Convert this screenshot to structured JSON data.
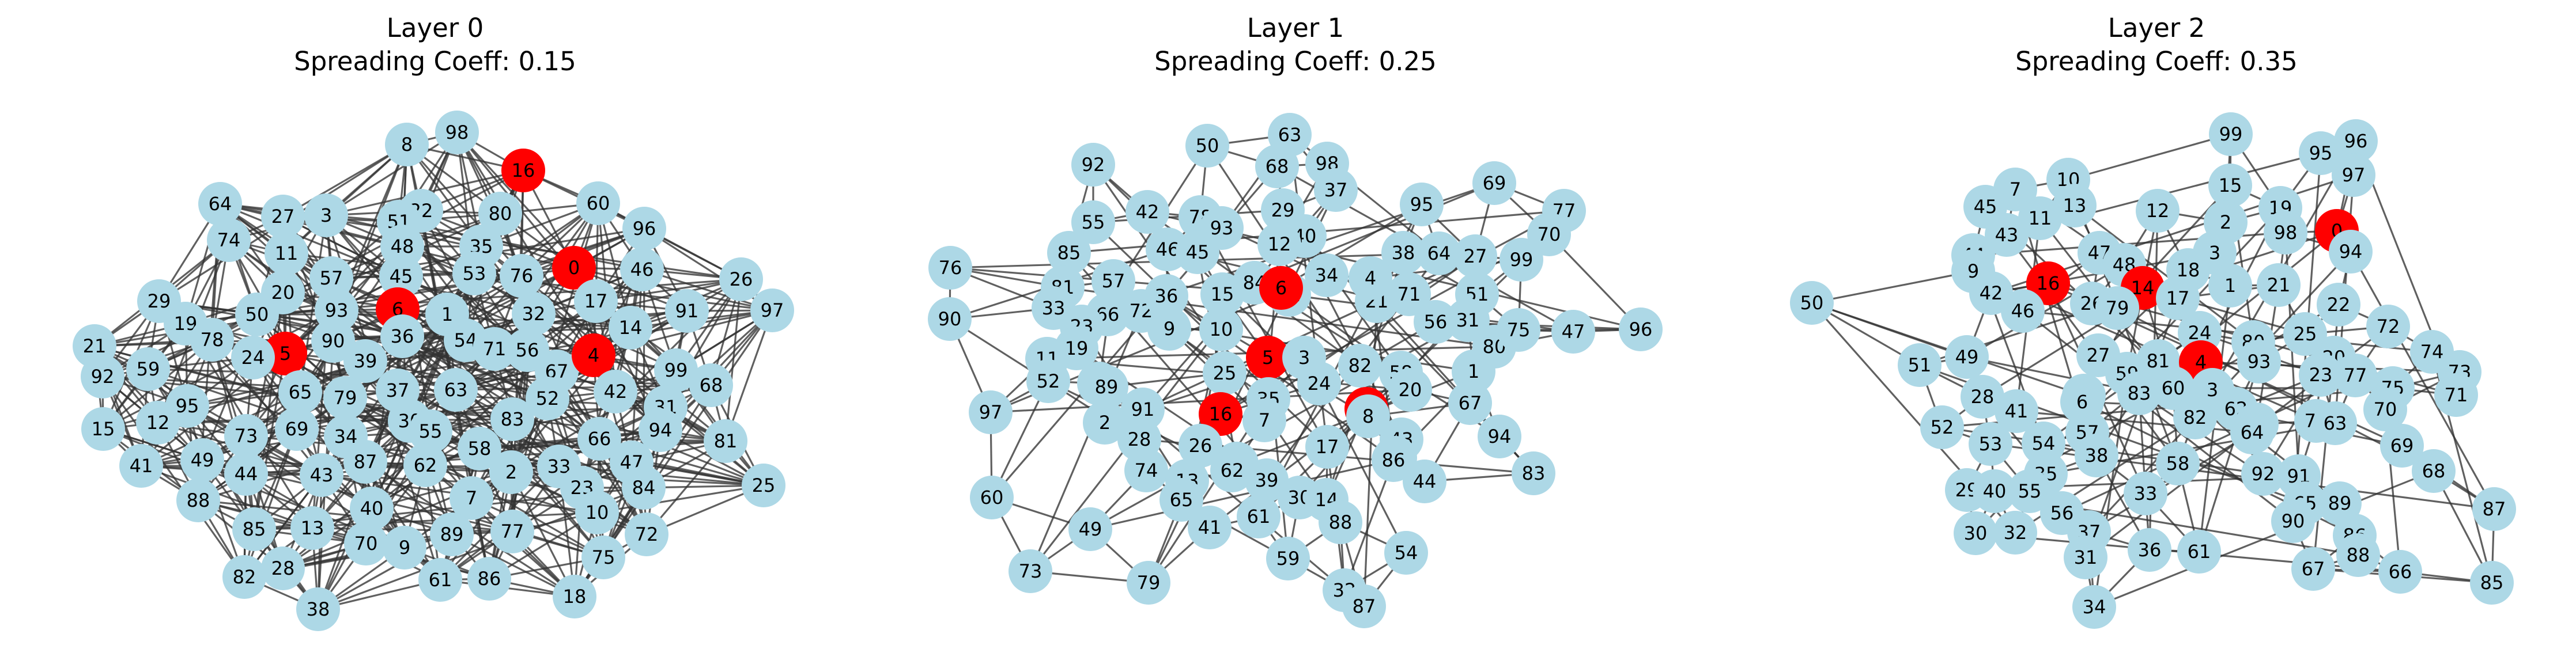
{
  "colors": {
    "node": "#add8e6",
    "seed": "#ff0000",
    "edge": "#333333"
  },
  "panels": [
    {
      "title_line1": "Layer 0",
      "title_line2": "Spreading Coeff: 0.15",
      "seed_nodes": [
        0,
        4,
        5,
        6,
        16
      ],
      "nodes": [
        "8",
        "98",
        "16",
        "64",
        "27",
        "3",
        "22",
        "51",
        "80",
        "60",
        "74",
        "11",
        "48",
        "35",
        "96",
        "0",
        "26",
        "29",
        "20",
        "57",
        "45",
        "53",
        "76",
        "46",
        "97",
        "19",
        "78",
        "50",
        "93",
        "6",
        "1",
        "32",
        "17",
        "91",
        "21",
        "5",
        "24",
        "90",
        "54",
        "71",
        "56",
        "14",
        "92",
        "59",
        "39",
        "36",
        "67",
        "4",
        "99",
        "65",
        "79",
        "37",
        "63",
        "52",
        "42",
        "68",
        "95",
        "15",
        "12",
        "69",
        "30",
        "55",
        "83",
        "31",
        "94",
        "81",
        "73",
        "34",
        "62",
        "58",
        "66",
        "49",
        "41",
        "44",
        "87",
        "33",
        "47",
        "25",
        "88",
        "43",
        "2",
        "23",
        "84",
        "85",
        "13",
        "40",
        "7",
        "10",
        "70",
        "9",
        "89",
        "77",
        "72",
        "75",
        "82",
        "28",
        "61",
        "86",
        "38",
        "18"
      ]
    },
    {
      "title_line1": "Layer 1",
      "title_line2": "Spreading Coeff: 0.25",
      "seed_nodes": [
        0,
        5,
        6,
        16
      ],
      "nodes": [
        "63",
        "50",
        "68",
        "98",
        "92",
        "37",
        "69",
        "29",
        "55",
        "42",
        "78",
        "93",
        "40",
        "95",
        "77",
        "70",
        "12",
        "46",
        "45",
        "85",
        "57",
        "38",
        "64",
        "27",
        "99",
        "76",
        "84",
        "34",
        "81",
        "71",
        "51",
        "33",
        "72",
        "66",
        "36",
        "15",
        "22",
        "21",
        "90",
        "56",
        "31",
        "23",
        "9",
        "47",
        "96",
        "10",
        "6",
        "80",
        "19",
        "75",
        "11",
        "53",
        "5",
        "3",
        "82",
        "58",
        "52",
        "25",
        "89",
        "24",
        "1",
        "20",
        "91",
        "35",
        "67",
        "7",
        "16",
        "0",
        "97",
        "8",
        "43",
        "28",
        "2",
        "94",
        "18",
        "74",
        "26",
        "48",
        "86",
        "44",
        "83",
        "17",
        "13",
        "62",
        "39",
        "60",
        "65",
        "30",
        "14",
        "88",
        "41",
        "49",
        "61",
        "59",
        "54",
        "73",
        "79",
        "32",
        "87",
        "4"
      ]
    },
    {
      "title_line1": "Layer 2",
      "title_line2": "Spreading Coeff: 0.35",
      "seed_nodes": [
        0,
        4,
        14,
        16
      ],
      "nodes": [
        "99",
        "96",
        "95",
        "97",
        "7",
        "10",
        "15",
        "45",
        "13",
        "12",
        "19",
        "2",
        "11",
        "43",
        "0",
        "98",
        "44",
        "3",
        "94",
        "47",
        "9",
        "48",
        "18",
        "16",
        "42",
        "14",
        "1",
        "21",
        "26",
        "79",
        "17",
        "22",
        "46",
        "50",
        "72",
        "74",
        "24",
        "80",
        "73",
        "51",
        "49",
        "27",
        "20",
        "25",
        "81",
        "4",
        "93",
        "77",
        "71",
        "75",
        "59",
        "23",
        "28",
        "41",
        "60",
        "83",
        "8",
        "6",
        "3",
        "70",
        "52",
        "57",
        "62",
        "82",
        "76",
        "78",
        "63",
        "69",
        "53",
        "54",
        "64",
        "38",
        "68",
        "35",
        "58",
        "92",
        "91",
        "87",
        "33",
        "29",
        "40",
        "55",
        "65",
        "89",
        "56",
        "90",
        "86",
        "30",
        "32",
        "37",
        "36",
        "61",
        "88",
        "31",
        "66",
        "67",
        "85",
        "34"
      ]
    }
  ]
}
